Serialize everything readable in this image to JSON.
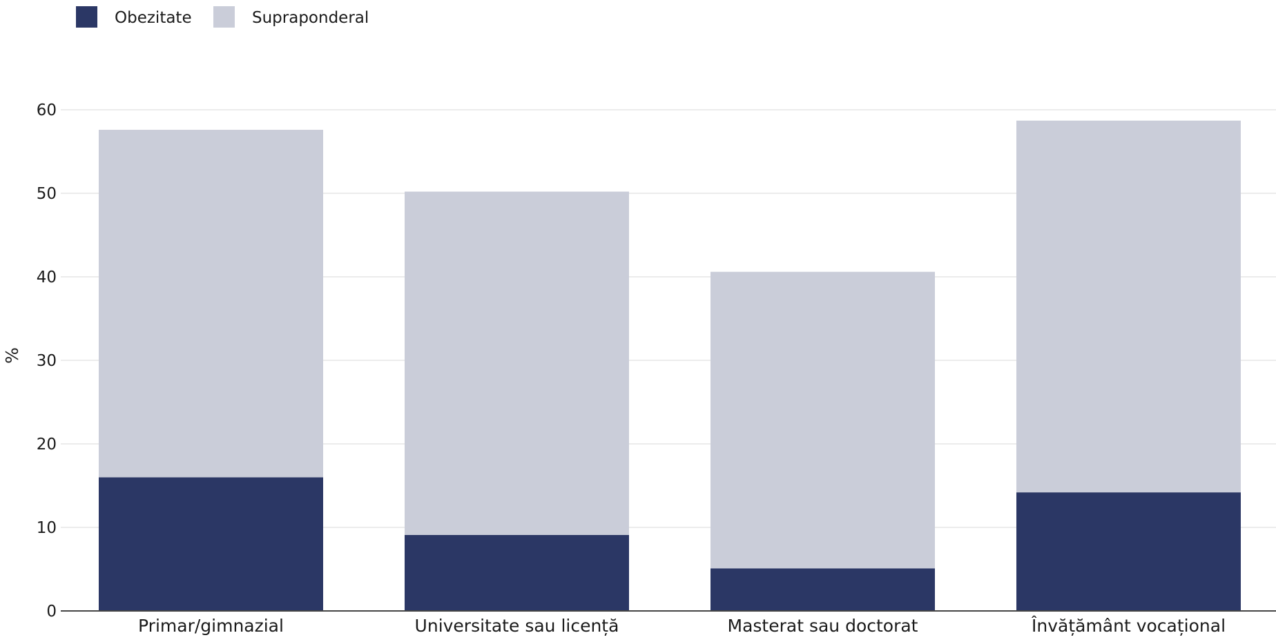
{
  "chart_data": {
    "type": "bar",
    "stacked": true,
    "categories": [
      "Primar/gimnazial",
      "Universitate sau licență",
      "Masterat sau doctorat",
      "Învățământ vocațional"
    ],
    "series": [
      {
        "name": "Obezitate",
        "values": [
          16,
          9.1,
          5.1,
          14.2
        ],
        "color": "#2b3765"
      },
      {
        "name": "Supraponderal",
        "values": [
          41.6,
          41.1,
          35.5,
          44.5
        ],
        "color": "#cacdd9"
      }
    ],
    "ylabel": "%",
    "ylim": [
      0,
      60
    ],
    "yticks": [
      0,
      10,
      20,
      30,
      40,
      50,
      60
    ],
    "grid": true,
    "legend_position": "top-left"
  }
}
